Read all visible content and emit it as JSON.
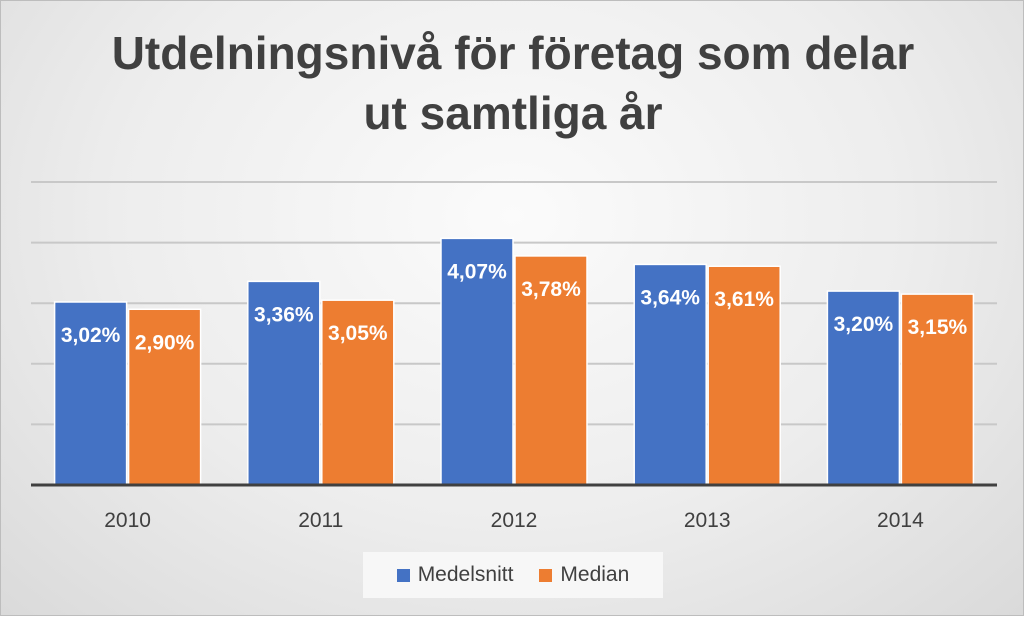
{
  "chart_data": {
    "type": "bar",
    "title_lines": [
      "Utdelningsnivå för företag som delar",
      "ut samtliga år"
    ],
    "categories": [
      "2010",
      "2011",
      "2012",
      "2013",
      "2014"
    ],
    "series": [
      {
        "name": "Medelsnitt",
        "color": "#4472C4",
        "values": [
          3.02,
          3.36,
          4.07,
          3.64,
          3.2
        ],
        "labels": [
          "3,02%",
          "3,36%",
          "4,07%",
          "3,64%",
          "3,20%"
        ]
      },
      {
        "name": "Median",
        "color": "#ED7D31",
        "values": [
          2.9,
          3.05,
          3.78,
          3.61,
          3.15
        ],
        "labels": [
          "2,90%",
          "3,05%",
          "3,78%",
          "3,61%",
          "3,15%"
        ]
      }
    ],
    "ylim": [
      0,
      5
    ],
    "gridlines": [
      1,
      2,
      3,
      4,
      5
    ],
    "xlabel": "",
    "ylabel": "",
    "legend_position": "bottom"
  }
}
